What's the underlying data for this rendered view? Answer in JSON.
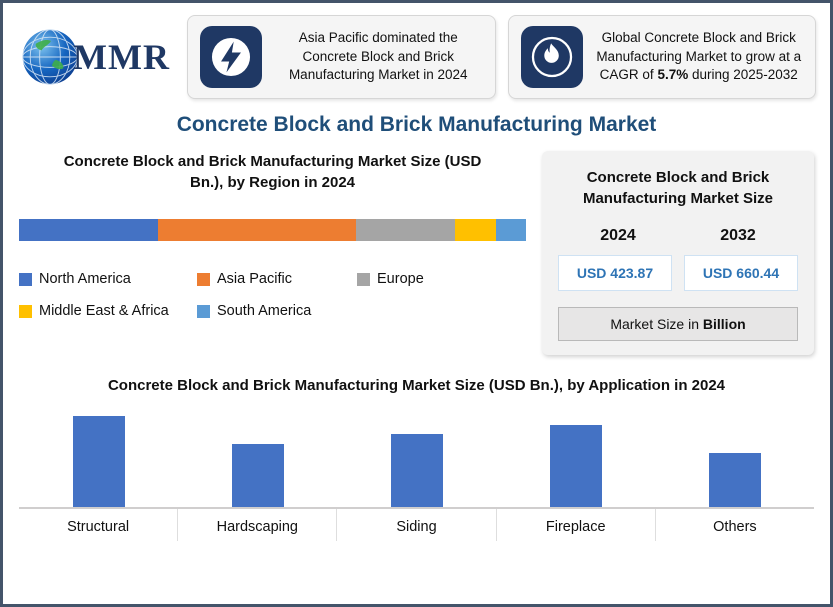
{
  "colors": {
    "accent": "#1f4e79",
    "page_border": "#44546a",
    "icon_tile": "#1f3864",
    "bar_blue": "#4472c4",
    "value_text": "#2e74b5"
  },
  "logo": {
    "text": "MMR",
    "icon": "globe-icon"
  },
  "callouts": [
    {
      "icon": "lightning-icon",
      "text": "Asia Pacific dominated the Concrete Block and Brick Manufacturing Market in 2024"
    },
    {
      "icon": "flame-icon",
      "text_prefix": "Global Concrete Block and Brick Manufacturing Market to grow at a CAGR of ",
      "text_bold": "5.7%",
      "text_suffix": " during 2025-2032"
    }
  ],
  "main_title": "Concrete Block and Brick Manufacturing Market",
  "market_size_card": {
    "title": "Concrete Block and Brick Manufacturing Market Size",
    "columns": [
      {
        "year": "2024",
        "value": "USD 423.87"
      },
      {
        "year": "2032",
        "value": "USD 660.44"
      }
    ],
    "footnote_prefix": "Market Size in ",
    "footnote_bold": "Billion"
  },
  "chart_data": [
    {
      "type": "bar",
      "subtype": "stacked-horizontal-share",
      "title": "Concrete Block and Brick Manufacturing Market Size (USD Bn.), by Region in 2024",
      "categories": [
        "North America",
        "Asia Pacific",
        "Europe",
        "Middle East & Africa",
        "South America"
      ],
      "share_pct": [
        27.5,
        39.0,
        19.5,
        8.0,
        6.0
      ],
      "colors": [
        "#4472c4",
        "#ed7d31",
        "#a5a5a5",
        "#ffc000",
        "#5b9bd5"
      ],
      "legend_position": "bottom-left",
      "grid": false
    },
    {
      "type": "bar",
      "title": "Concrete Block and Brick Manufacturing Market Size (USD Bn.), by Application in 2024",
      "categories": [
        "Structural",
        "Hardscaping",
        "Siding",
        "Fireplace",
        "Others"
      ],
      "values": [
        93,
        64,
        74,
        83,
        55
      ],
      "value_units": "relative-height (no value axis shown)",
      "ylim": [
        0,
        100
      ],
      "bar_color": "#4472c4",
      "grid": false,
      "legend_position": "none"
    }
  ]
}
